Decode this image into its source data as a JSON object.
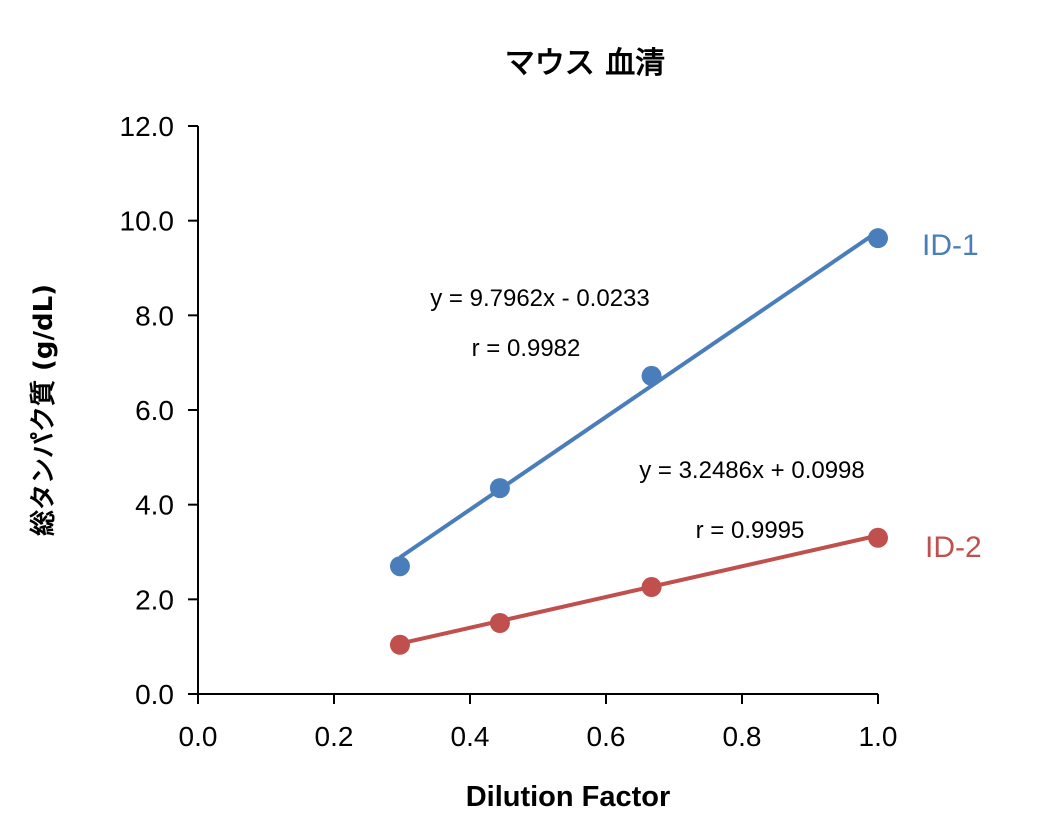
{
  "chart_data": {
    "type": "scatter",
    "title": "マウス 血清",
    "xlabel": "Dilution Factor",
    "ylabel": "総タンパク質 (g/dL)",
    "xlim": [
      0,
      1.0
    ],
    "ylim": [
      0,
      12.0
    ],
    "xticks": [
      "0.0",
      "0.2",
      "0.4",
      "0.6",
      "0.8",
      "1.0"
    ],
    "yticks": [
      "0.0",
      "2.0",
      "4.0",
      "6.0",
      "8.0",
      "10.0",
      "12.0"
    ],
    "grid": false,
    "series": [
      {
        "name": "ID-1",
        "color": "#4a7ebb",
        "x": [
          0.297,
          0.444,
          0.667,
          1.0
        ],
        "y": [
          2.7,
          4.35,
          6.72,
          9.63
        ],
        "trendline": {
          "slope": 9.7962,
          "intercept": -0.0233
        },
        "equation": "y = 9.7962x - 0.0233",
        "r": "r = 0.9982"
      },
      {
        "name": "ID-2",
        "color": "#c0504d",
        "x": [
          0.297,
          0.444,
          0.667,
          1.0
        ],
        "y": [
          1.04,
          1.5,
          2.26,
          3.3
        ],
        "trendline": {
          "slope": 3.2486,
          "intercept": 0.0998
        },
        "equation": "y = 3.2486x + 0.0998",
        "r": "r = 0.9995"
      }
    ]
  }
}
